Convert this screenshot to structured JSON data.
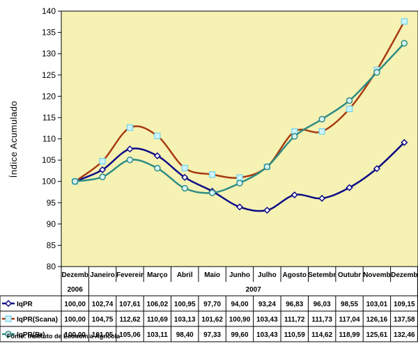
{
  "colors": {
    "plot_background": "#F6F2B4",
    "IqPR": "#0B0B86",
    "IqPR(Scana)": "#A83A10",
    "IqPR(Br)": "#2E8C84",
    "marker_IqPR_fill": "#FFFFFF",
    "marker_Scana_fill": "#CFF3FA",
    "marker_Br_fill": "#D9F4F8",
    "table_border": "#000000"
  },
  "footer": {
    "source": "Fonte: Instituto de Economia Agrícola"
  },
  "chart_data": {
    "type": "line",
    "ylabel": "Índice Acumulado",
    "xlabel": "",
    "ylim": [
      80,
      140
    ],
    "y_ticks": [
      80,
      85,
      90,
      95,
      100,
      105,
      110,
      115,
      120,
      125,
      130,
      135,
      140
    ],
    "grid": false,
    "smooth": true,
    "categories": [
      "Dezemb",
      "Janeiro",
      "Fevereir",
      "Março",
      "Abril",
      "Maio",
      "Junho",
      "Julho",
      "Agosto",
      "Setembr",
      "Outubr",
      "Novemb",
      "Dezemb"
    ],
    "year_labels": [
      {
        "label": "2006",
        "start": 0,
        "end": 0
      },
      {
        "label": "2007",
        "start": 1,
        "end": 12
      }
    ],
    "series": [
      {
        "name": "IqPR",
        "marker": "diamond",
        "values": [
          100.0,
          102.74,
          107.61,
          106.02,
          100.95,
          97.7,
          94.0,
          93.24,
          96.83,
          96.03,
          98.55,
          103.01,
          109.15
        ],
        "labels": [
          "100,00",
          "102,74",
          "107,61",
          "106,02",
          "100,95",
          "97,70",
          "94,00",
          "93,24",
          "96,83",
          "96,03",
          "98,55",
          "103,01",
          "109,15"
        ]
      },
      {
        "name": "IqPR(Scana)",
        "marker": "square",
        "values": [
          100.0,
          104.75,
          112.62,
          110.69,
          103.13,
          101.62,
          100.9,
          103.43,
          111.72,
          111.73,
          117.04,
          126.16,
          137.58
        ],
        "labels": [
          "100,00",
          "104,75",
          "112,62",
          "110,69",
          "103,13",
          "101,62",
          "100,90",
          "103,43",
          "111,72",
          "111,73",
          "117,04",
          "126,16",
          "137,58"
        ]
      },
      {
        "name": "IqPR(Br)",
        "marker": "circle",
        "values": [
          100.0,
          101.05,
          105.06,
          103.11,
          98.4,
          97.33,
          99.6,
          103.43,
          110.59,
          114.62,
          118.99,
          125.61,
          132.46
        ],
        "labels": [
          "100,00",
          "101,05",
          "105,06",
          "103,11",
          "98,40",
          "97,33",
          "99,60",
          "103,43",
          "110,59",
          "114,62",
          "118,99",
          "125,61",
          "132,46"
        ]
      }
    ]
  }
}
